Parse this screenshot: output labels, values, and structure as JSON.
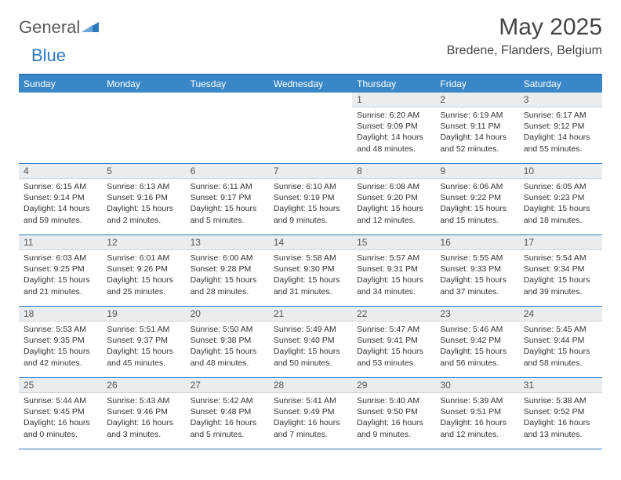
{
  "brand": {
    "general": "General",
    "blue": "Blue"
  },
  "title": "May 2025",
  "location": "Bredene, Flanders, Belgium",
  "colors": {
    "accent": "#3a87c8",
    "rule": "#2f79bd",
    "daynum_bg": "#e9edf0",
    "text": "#333333"
  },
  "weekdays": [
    "Sunday",
    "Monday",
    "Tuesday",
    "Wednesday",
    "Thursday",
    "Friday",
    "Saturday"
  ],
  "weeks": [
    [
      null,
      null,
      null,
      null,
      {
        "n": "1",
        "sr": "6:20 AM",
        "ss": "9:09 PM",
        "dl": "14 hours and 48 minutes."
      },
      {
        "n": "2",
        "sr": "6:19 AM",
        "ss": "9:11 PM",
        "dl": "14 hours and 52 minutes."
      },
      {
        "n": "3",
        "sr": "6:17 AM",
        "ss": "9:12 PM",
        "dl": "14 hours and 55 minutes."
      }
    ],
    [
      {
        "n": "4",
        "sr": "6:15 AM",
        "ss": "9:14 PM",
        "dl": "14 hours and 59 minutes."
      },
      {
        "n": "5",
        "sr": "6:13 AM",
        "ss": "9:16 PM",
        "dl": "15 hours and 2 minutes."
      },
      {
        "n": "6",
        "sr": "6:11 AM",
        "ss": "9:17 PM",
        "dl": "15 hours and 5 minutes."
      },
      {
        "n": "7",
        "sr": "6:10 AM",
        "ss": "9:19 PM",
        "dl": "15 hours and 9 minutes."
      },
      {
        "n": "8",
        "sr": "6:08 AM",
        "ss": "9:20 PM",
        "dl": "15 hours and 12 minutes."
      },
      {
        "n": "9",
        "sr": "6:06 AM",
        "ss": "9:22 PM",
        "dl": "15 hours and 15 minutes."
      },
      {
        "n": "10",
        "sr": "6:05 AM",
        "ss": "9:23 PM",
        "dl": "15 hours and 18 minutes."
      }
    ],
    [
      {
        "n": "11",
        "sr": "6:03 AM",
        "ss": "9:25 PM",
        "dl": "15 hours and 21 minutes."
      },
      {
        "n": "12",
        "sr": "6:01 AM",
        "ss": "9:26 PM",
        "dl": "15 hours and 25 minutes."
      },
      {
        "n": "13",
        "sr": "6:00 AM",
        "ss": "9:28 PM",
        "dl": "15 hours and 28 minutes."
      },
      {
        "n": "14",
        "sr": "5:58 AM",
        "ss": "9:30 PM",
        "dl": "15 hours and 31 minutes."
      },
      {
        "n": "15",
        "sr": "5:57 AM",
        "ss": "9:31 PM",
        "dl": "15 hours and 34 minutes."
      },
      {
        "n": "16",
        "sr": "5:55 AM",
        "ss": "9:33 PM",
        "dl": "15 hours and 37 minutes."
      },
      {
        "n": "17",
        "sr": "5:54 AM",
        "ss": "9:34 PM",
        "dl": "15 hours and 39 minutes."
      }
    ],
    [
      {
        "n": "18",
        "sr": "5:53 AM",
        "ss": "9:35 PM",
        "dl": "15 hours and 42 minutes."
      },
      {
        "n": "19",
        "sr": "5:51 AM",
        "ss": "9:37 PM",
        "dl": "15 hours and 45 minutes."
      },
      {
        "n": "20",
        "sr": "5:50 AM",
        "ss": "9:38 PM",
        "dl": "15 hours and 48 minutes."
      },
      {
        "n": "21",
        "sr": "5:49 AM",
        "ss": "9:40 PM",
        "dl": "15 hours and 50 minutes."
      },
      {
        "n": "22",
        "sr": "5:47 AM",
        "ss": "9:41 PM",
        "dl": "15 hours and 53 minutes."
      },
      {
        "n": "23",
        "sr": "5:46 AM",
        "ss": "9:42 PM",
        "dl": "15 hours and 56 minutes."
      },
      {
        "n": "24",
        "sr": "5:45 AM",
        "ss": "9:44 PM",
        "dl": "15 hours and 58 minutes."
      }
    ],
    [
      {
        "n": "25",
        "sr": "5:44 AM",
        "ss": "9:45 PM",
        "dl": "16 hours and 0 minutes."
      },
      {
        "n": "26",
        "sr": "5:43 AM",
        "ss": "9:46 PM",
        "dl": "16 hours and 3 minutes."
      },
      {
        "n": "27",
        "sr": "5:42 AM",
        "ss": "9:48 PM",
        "dl": "16 hours and 5 minutes."
      },
      {
        "n": "28",
        "sr": "5:41 AM",
        "ss": "9:49 PM",
        "dl": "16 hours and 7 minutes."
      },
      {
        "n": "29",
        "sr": "5:40 AM",
        "ss": "9:50 PM",
        "dl": "16 hours and 9 minutes."
      },
      {
        "n": "30",
        "sr": "5:39 AM",
        "ss": "9:51 PM",
        "dl": "16 hours and 12 minutes."
      },
      {
        "n": "31",
        "sr": "5:38 AM",
        "ss": "9:52 PM",
        "dl": "16 hours and 13 minutes."
      }
    ]
  ],
  "labels": {
    "sunrise": "Sunrise:",
    "sunset": "Sunset:",
    "daylight": "Daylight:"
  }
}
